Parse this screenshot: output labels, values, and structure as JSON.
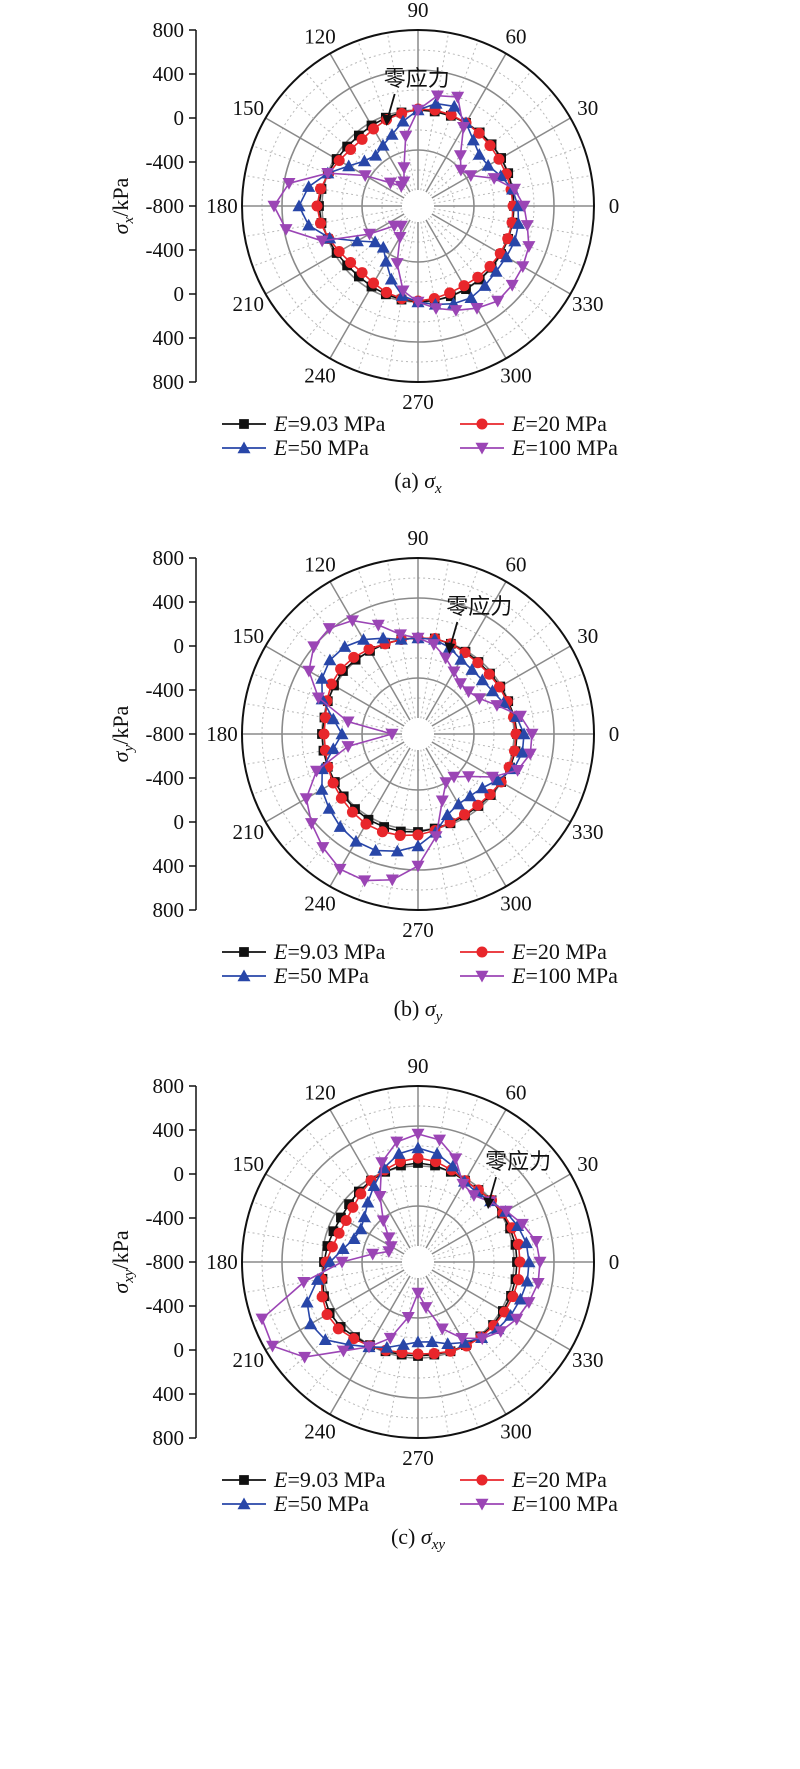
{
  "legend_entries": [
    {
      "name": "E",
      "value": "=9.03 MPa",
      "color": "#111111",
      "marker": "square"
    },
    {
      "name": "E",
      "value": "=20 MPa",
      "color": "#e8262b",
      "marker": "circle"
    },
    {
      "name": "E",
      "value": "=50 MPa",
      "color": "#2846a8",
      "marker": "triangle-up"
    },
    {
      "name": "E",
      "value": "=100 MPa",
      "color": "#9b45b5",
      "marker": "triangle-down"
    }
  ],
  "chart_data": [
    {
      "type": "line",
      "polar": true,
      "panel_caption": "(a) σx",
      "caption_prefix": "(a) ",
      "caption_symbol": "σ",
      "caption_subscript": "x",
      "ylabel_symbol": "σ",
      "ylabel_subscript": "x",
      "ylabel_unit": "/kPa",
      "radial_ticks_upper": [
        "800",
        "400",
        "0",
        "-400",
        "-800"
      ],
      "radial_ticks_lower": [
        "-400",
        "0",
        "400",
        "800"
      ],
      "angle_labels": [
        "0",
        "30",
        "60",
        "90",
        "120",
        "150",
        "180",
        "210",
        "240",
        "270",
        "300",
        "330"
      ],
      "annotation": "零应力",
      "annotation_angle": 110,
      "rlim": [
        -800,
        800
      ],
      "angles_deg": [
        0,
        10,
        20,
        30,
        40,
        50,
        60,
        70,
        80,
        90,
        100,
        110,
        120,
        130,
        140,
        150,
        160,
        170,
        180,
        190,
        200,
        210,
        220,
        230,
        240,
        250,
        260,
        270,
        280,
        290,
        300,
        310,
        320,
        330,
        340,
        350
      ],
      "series": [
        {
          "name": "E=9.03 MPa",
          "values": [
            0,
            0,
            0,
            0,
            0,
            0,
            0,
            0,
            0,
            0,
            -10,
            -20,
            -30,
            -40,
            -35,
            -20,
            0,
            20,
            30,
            20,
            0,
            -20,
            -35,
            -40,
            -30,
            -20,
            -10,
            0,
            0,
            0,
            0,
            0,
            0,
            0,
            0,
            0
          ]
        },
        {
          "name": "E=20 MPa",
          "values": [
            -10,
            -15,
            -20,
            -25,
            -20,
            -10,
            0,
            10,
            15,
            10,
            -20,
            -40,
            -70,
            -90,
            -80,
            -50,
            -10,
            30,
            50,
            30,
            -10,
            -50,
            -80,
            -90,
            -70,
            -40,
            -20,
            -10,
            -20,
            -35,
            -40,
            -30,
            -20,
            -10,
            -5,
            -5
          ]
        },
        {
          "name": "E=50 MPa",
          "values": [
            40,
            0,
            -80,
            -150,
            -160,
            -100,
            0,
            100,
            80,
            0,
            -100,
            -200,
            -260,
            -300,
            -260,
            -160,
            0,
            150,
            230,
            150,
            -20,
            -260,
            -400,
            -420,
            -320,
            -180,
            -50,
            0,
            40,
            80,
            100,
            80,
            60,
            60,
            70,
            60
          ]
        },
        {
          "name": "E=100 MPa",
          "values": [
            100,
            20,
            -150,
            -350,
            -400,
            -300,
            -50,
            200,
            160,
            0,
            -250,
            -550,
            -680,
            -700,
            -600,
            -350,
            0,
            350,
            480,
            380,
            60,
            -400,
            -650,
            -700,
            -600,
            -350,
            -100,
            0,
            80,
            150,
            220,
            280,
            270,
            250,
            220,
            150
          ]
        }
      ]
    },
    {
      "type": "line",
      "polar": true,
      "panel_caption": "(b) σy",
      "caption_prefix": "(b) ",
      "caption_symbol": "σ",
      "caption_subscript": "y",
      "ylabel_symbol": "σ",
      "ylabel_subscript": "y",
      "ylabel_unit": "/kPa",
      "radial_ticks_upper": [
        "800",
        "400",
        "0",
        "-400",
        "-800"
      ],
      "radial_ticks_lower": [
        "-400",
        "0",
        "400",
        "800"
      ],
      "angle_labels": [
        "0",
        "30",
        "60",
        "90",
        "120",
        "150",
        "180",
        "210",
        "240",
        "270",
        "300",
        "330"
      ],
      "annotation": "零应力",
      "annotation_angle": 70,
      "rlim": [
        -800,
        800
      ],
      "angles_deg": [
        0,
        10,
        20,
        30,
        40,
        50,
        60,
        70,
        80,
        90,
        100,
        110,
        120,
        130,
        140,
        150,
        160,
        170,
        180,
        190,
        200,
        210,
        220,
        230,
        240,
        250,
        260,
        270,
        280,
        290,
        300,
        310,
        320,
        330,
        340,
        350
      ],
      "series": [
        {
          "name": "E=9.03 MPa",
          "values": [
            30,
            20,
            0,
            -10,
            -20,
            -20,
            -10,
            0,
            10,
            0,
            0,
            0,
            0,
            10,
            20,
            10,
            0,
            -10,
            0,
            0,
            0,
            0,
            10,
            20,
            30,
            30,
            30,
            20,
            0,
            -10,
            -20,
            -20,
            -10,
            0,
            20,
            30
          ]
        },
        {
          "name": "E=20 MPa",
          "values": [
            20,
            10,
            -10,
            -20,
            -30,
            -30,
            -20,
            0,
            10,
            0,
            0,
            0,
            20,
            40,
            50,
            40,
            10,
            -20,
            -20,
            -20,
            0,
            20,
            40,
            60,
            80,
            80,
            70,
            50,
            20,
            -20,
            -30,
            -30,
            -20,
            0,
            10,
            20
          ]
        },
        {
          "name": "E=50 MPa",
          "values": [
            100,
            40,
            -50,
            -100,
            -120,
            -120,
            -100,
            -40,
            0,
            0,
            0,
            60,
            130,
            180,
            190,
            150,
            60,
            -100,
            -200,
            -100,
            60,
            150,
            200,
            250,
            280,
            280,
            230,
            160,
            40,
            -100,
            -150,
            -150,
            -120,
            -40,
            60,
            100
          ]
        },
        {
          "name": "E=100 MPa",
          "values": [
            180,
            80,
            -120,
            -250,
            -300,
            -300,
            -240,
            -150,
            -50,
            0,
            50,
            200,
            350,
            420,
            400,
            300,
            100,
            -250,
            -700,
            -250,
            120,
            330,
            430,
            520,
            600,
            600,
            520,
            360,
            80,
            -250,
            -400,
            -400,
            -300,
            -100,
            100,
            180
          ]
        }
      ]
    },
    {
      "type": "line",
      "polar": true,
      "panel_caption": "(c) σxy",
      "caption_prefix": "(c) ",
      "caption_symbol": "σ",
      "caption_subscript": "xy",
      "ylabel_symbol": "σ",
      "ylabel_subscript": "xy",
      "ylabel_unit": "/kPa",
      "radial_ticks_upper": [
        "800",
        "400",
        "0",
        "-400",
        "-800"
      ],
      "radial_ticks_lower": [
        "-400",
        "0",
        "400",
        "800"
      ],
      "angle_labels": [
        "0",
        "30",
        "60",
        "90",
        "120",
        "150",
        "180",
        "210",
        "240",
        "270",
        "300",
        "330"
      ],
      "annotation": "零应力",
      "annotation_angle": 40,
      "rlim": [
        -800,
        800
      ],
      "angles_deg": [
        0,
        10,
        20,
        30,
        40,
        50,
        60,
        70,
        80,
        90,
        100,
        110,
        120,
        130,
        140,
        150,
        160,
        170,
        180,
        190,
        200,
        210,
        220,
        230,
        240,
        250,
        260,
        270,
        280,
        290,
        300,
        310,
        320,
        330,
        340,
        350
      ],
      "series": [
        {
          "name": "E=9.03 MPa",
          "values": [
            30,
            30,
            20,
            10,
            0,
            -20,
            -20,
            0,
            20,
            30,
            20,
            0,
            -20,
            -40,
            -60,
            -70,
            -60,
            -40,
            -20,
            10,
            40,
            60,
            50,
            20,
            0,
            -10,
            -20,
            -20,
            -20,
            -10,
            0,
            10,
            20,
            20,
            30,
            30
          ]
        },
        {
          "name": "E=20 MPa",
          "values": [
            60,
            60,
            40,
            20,
            0,
            -20,
            -20,
            20,
            60,
            80,
            60,
            20,
            -20,
            -70,
            -110,
            -130,
            -120,
            -90,
            -40,
            20,
            60,
            90,
            80,
            40,
            10,
            -20,
            -40,
            -40,
            -30,
            -10,
            10,
            20,
            30,
            40,
            50,
            60
          ]
        },
        {
          "name": "E=50 MPa",
          "values": [
            150,
            140,
            100,
            50,
            -10,
            -50,
            -30,
            60,
            140,
            180,
            140,
            40,
            -80,
            -180,
            -260,
            -300,
            -280,
            -200,
            -80,
            60,
            220,
            280,
            250,
            120,
            20,
            -50,
            -120,
            -160,
            -150,
            -90,
            -30,
            30,
            80,
            110,
            130,
            150
          ]
        },
        {
          "name": "E=100 MPa",
          "values": [
            260,
            240,
            150,
            60,
            -20,
            -90,
            -60,
            140,
            280,
            320,
            260,
            100,
            -200,
            -420,
            -580,
            -650,
            -650,
            -500,
            -200,
            200,
            700,
            720,
            520,
            200,
            20,
            -150,
            -400,
            -650,
            -500,
            -250,
            -80,
            40,
            120,
            180,
            220,
            260
          ]
        }
      ]
    }
  ]
}
